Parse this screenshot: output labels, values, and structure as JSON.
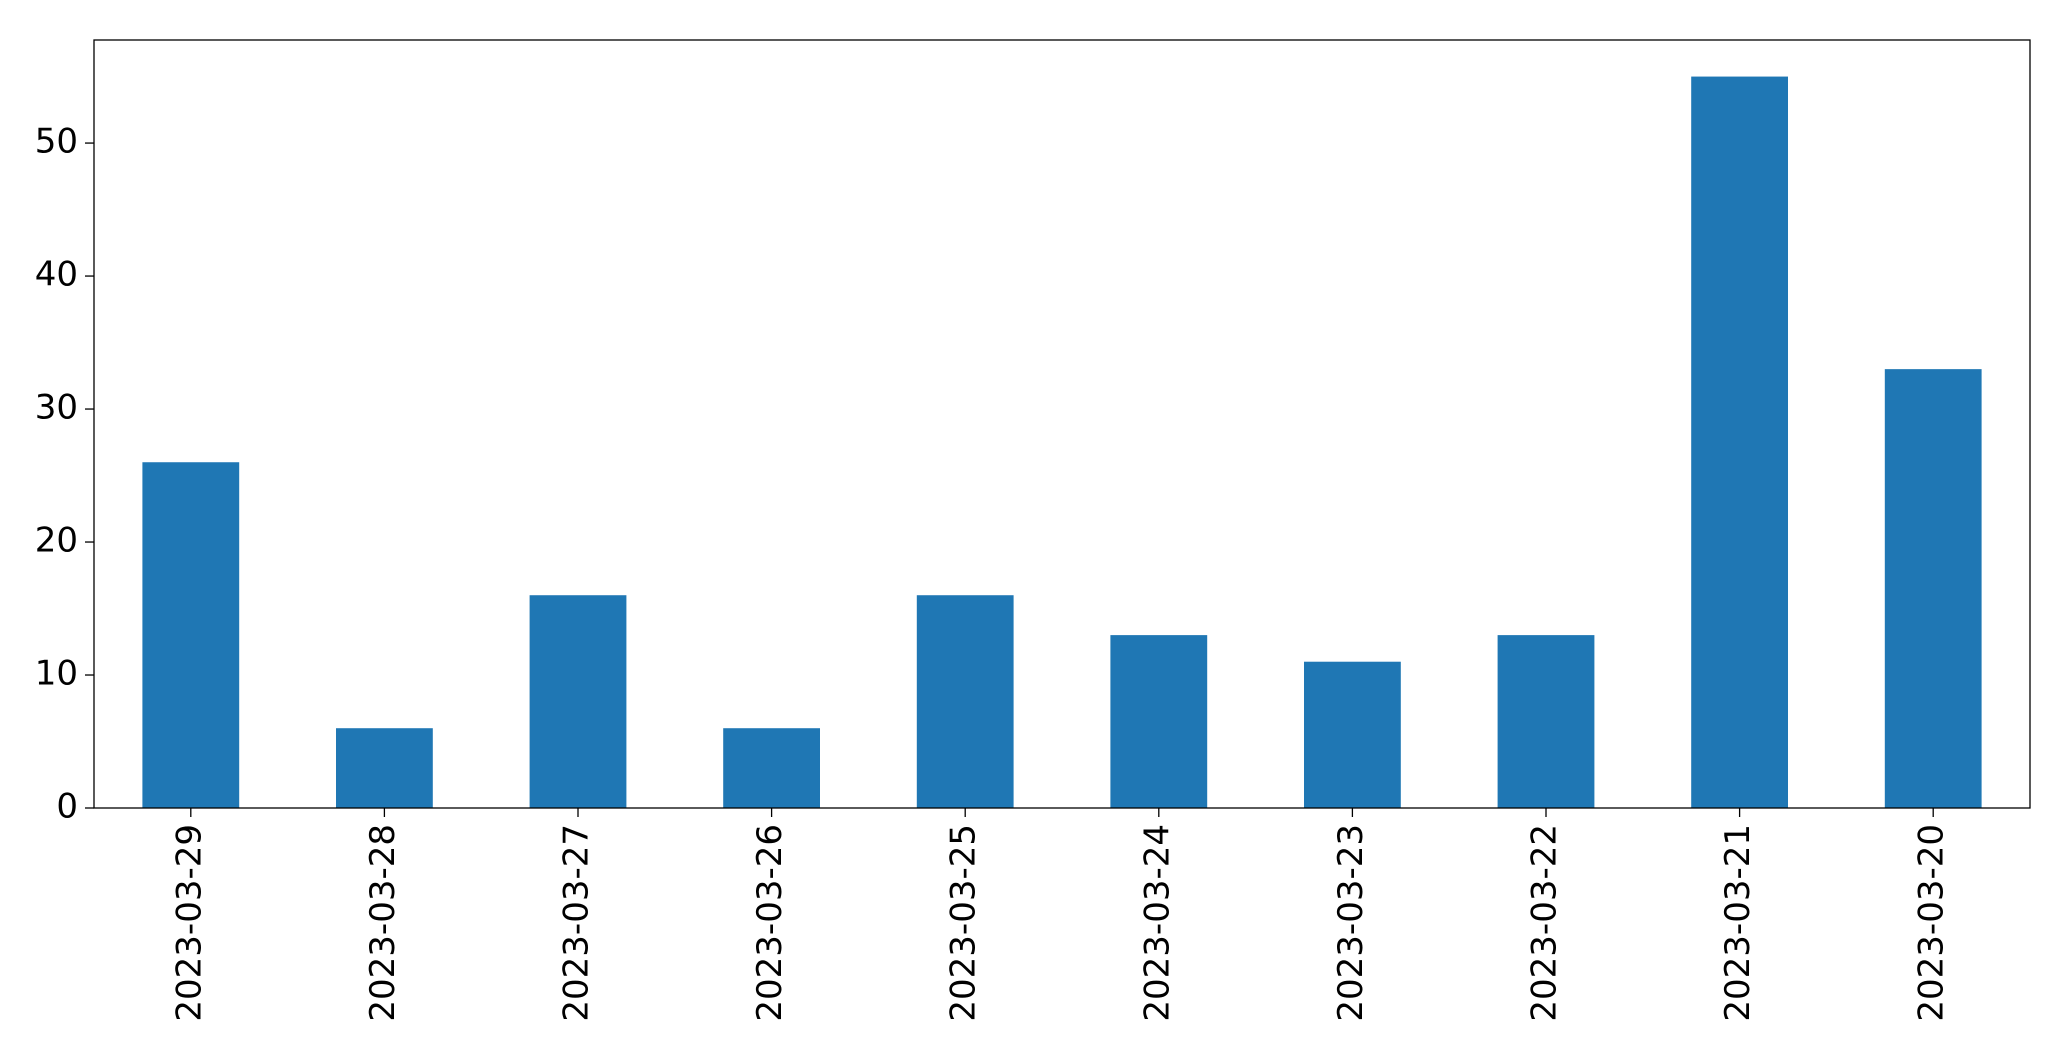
{
  "chart_data": {
    "type": "bar",
    "categories": [
      "2023-03-29",
      "2023-03-28",
      "2023-03-27",
      "2023-03-26",
      "2023-03-25",
      "2023-03-24",
      "2023-03-23",
      "2023-03-22",
      "2023-03-21",
      "2023-03-20"
    ],
    "values": [
      26,
      6,
      16,
      6,
      16,
      13,
      11,
      13,
      55,
      33
    ],
    "color": "#1f77b4",
    "ylim": [
      0,
      57.75
    ],
    "yticks": [
      0,
      10,
      20,
      30,
      40,
      50
    ],
    "grid": false
  }
}
